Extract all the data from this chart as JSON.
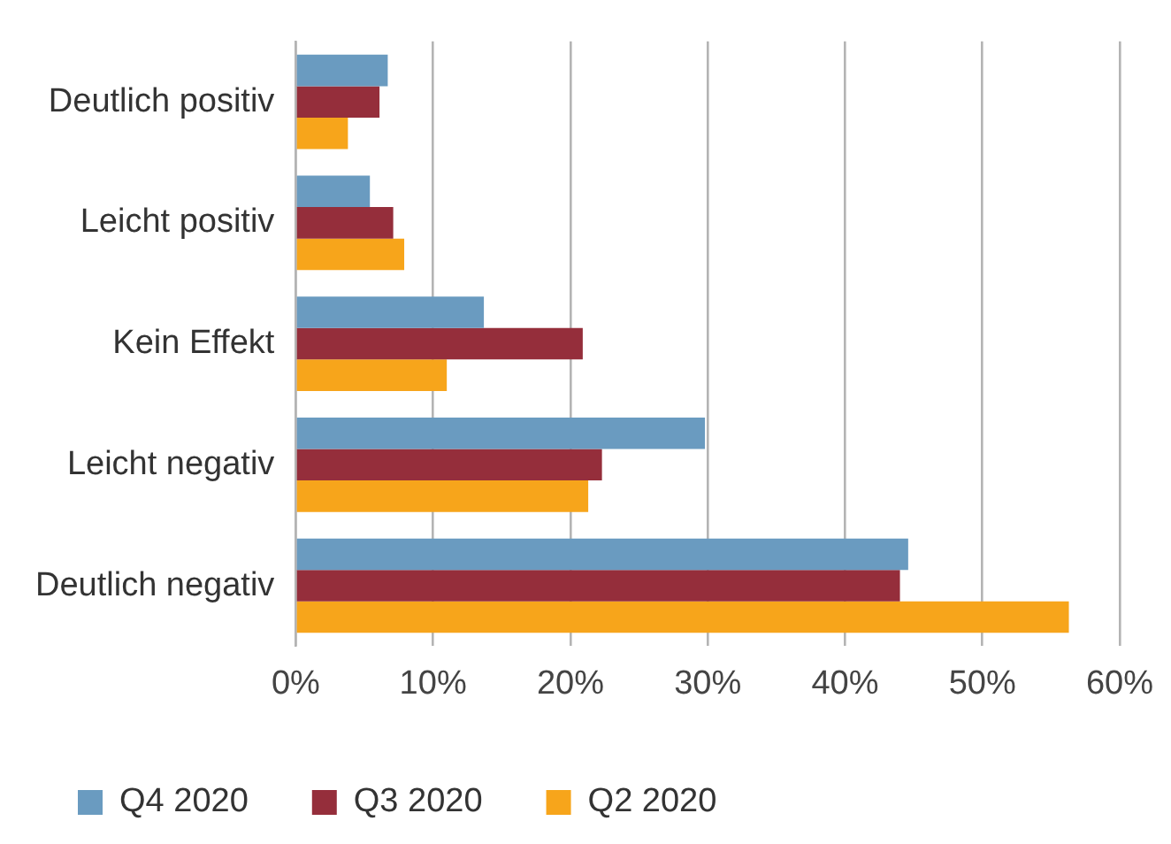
{
  "chart_data": {
    "type": "bar",
    "orientation": "horizontal",
    "categories": [
      "Deutlich positiv",
      "Leicht positiv",
      "Kein Effekt",
      "Leicht negativ",
      "Deutlich negativ"
    ],
    "series": [
      {
        "name": "Q4 2020",
        "color": "#6a9bc0",
        "values": [
          6.7,
          5.4,
          13.7,
          29.8,
          44.6
        ]
      },
      {
        "name": "Q3 2020",
        "color": "#952e3b",
        "values": [
          6.1,
          7.1,
          20.9,
          22.3,
          44.0
        ]
      },
      {
        "name": "Q2 2020",
        "color": "#f7a51b",
        "values": [
          3.8,
          7.9,
          11.0,
          21.3,
          56.3
        ]
      }
    ],
    "xlim": [
      0,
      60
    ],
    "xticks": [
      {
        "value": 0,
        "label": "0%"
      },
      {
        "value": 10,
        "label": "10%"
      },
      {
        "value": 20,
        "label": "20%"
      },
      {
        "value": 30,
        "label": "30%"
      },
      {
        "value": 40,
        "label": "40%"
      },
      {
        "value": 50,
        "label": "50%"
      },
      {
        "value": 60,
        "label": "60%"
      }
    ],
    "grid": "x",
    "legend": "bottom"
  }
}
